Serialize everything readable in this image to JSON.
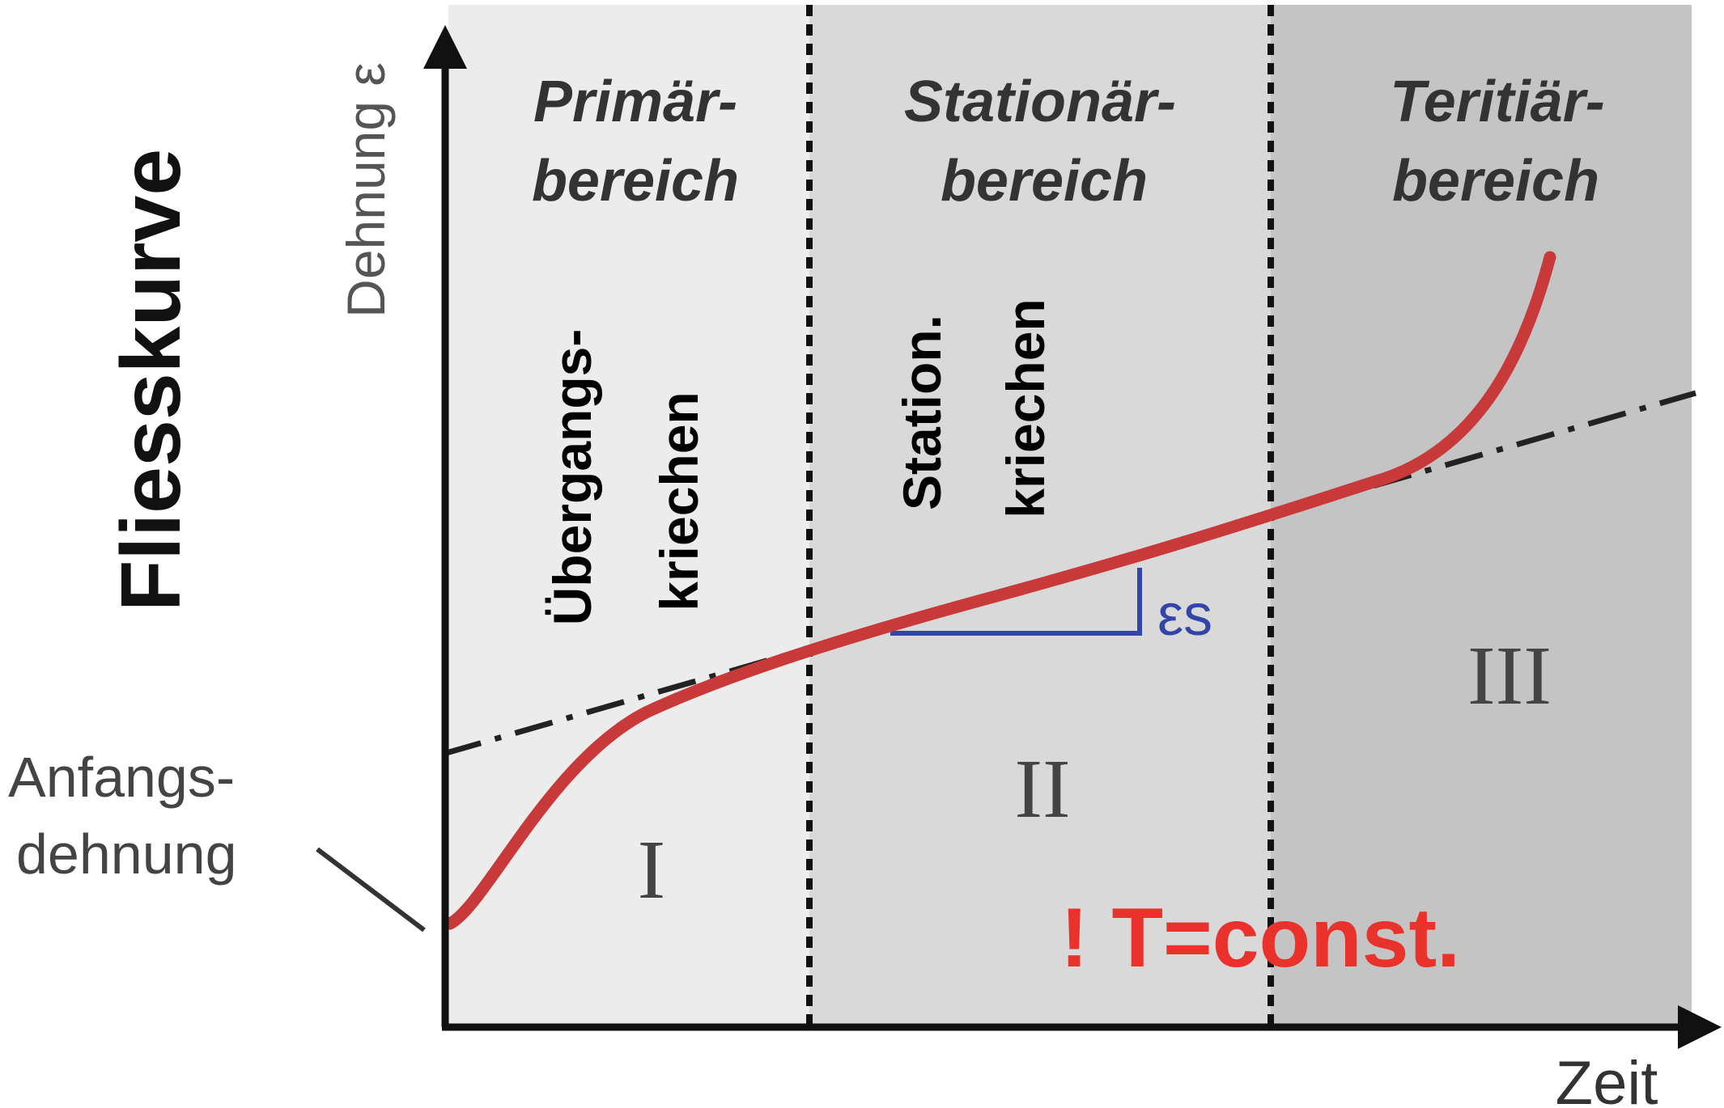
{
  "title": "Fliesskurve",
  "axis": {
    "y_label": "Dehnung ε",
    "x_label": "Zeit"
  },
  "regions": [
    {
      "id": "I",
      "title_line1": "Primär-",
      "title_line2": "bereich",
      "numeral": "I",
      "note_line1": "Übergangs-",
      "note_line2": "kriechen",
      "fill": "#ececec"
    },
    {
      "id": "II",
      "title_line1": "Stationär-",
      "title_line2": "bereich",
      "numeral": "II",
      "note_line1": "Station.",
      "note_line2": "kriechen",
      "fill": "#d9d9d9"
    },
    {
      "id": "III",
      "title_line1": "Teritiär-",
      "title_line2": "bereich",
      "numeral": "III",
      "fill": "#c4c4c4"
    }
  ],
  "annotations": {
    "initial_strain_line1": "Anfangs-",
    "initial_strain_line2": "dehnung",
    "slope_label": "εs",
    "condition": "! T=const."
  },
  "colors": {
    "curve": "#c83a3a",
    "slope_triangle": "#3346a8",
    "condition_text": "#e8322b",
    "axis": "#111111"
  }
}
